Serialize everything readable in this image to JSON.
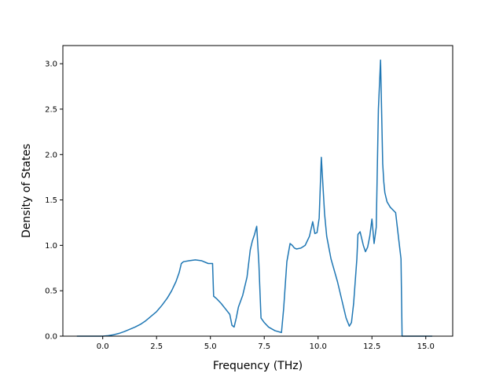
{
  "chart_data": {
    "type": "line",
    "title": "",
    "xlabel": "Frequency (THz)",
    "ylabel": "Density of States",
    "xlim": [
      -1.85,
      16.25
    ],
    "ylim": [
      0.0,
      3.2
    ],
    "grid": false,
    "legend": "none",
    "xticks": [
      0.0,
      2.5,
      5.0,
      7.5,
      10.0,
      12.5,
      15.0
    ],
    "xtick_labels": [
      "0.0",
      "2.5",
      "5.0",
      "7.5",
      "10.0",
      "12.5",
      "15.0"
    ],
    "yticks": [
      0.0,
      0.5,
      1.0,
      1.5,
      2.0,
      2.5,
      3.0
    ],
    "ytick_labels": [
      "0.0",
      "0.5",
      "1.0",
      "1.5",
      "2.0",
      "2.5",
      "3.0"
    ],
    "series": [
      {
        "color": "#1f77b4",
        "x": [
          -1.2,
          -0.5,
          0.0,
          0.25,
          0.5,
          0.75,
          1.0,
          1.25,
          1.5,
          1.75,
          2.0,
          2.25,
          2.5,
          2.75,
          3.0,
          3.2,
          3.4,
          3.55,
          3.65,
          3.75,
          4.0,
          4.3,
          4.6,
          4.9,
          5.1,
          5.15,
          5.3,
          5.5,
          5.7,
          5.9,
          6.0,
          6.1,
          6.2,
          6.3,
          6.5,
          6.7,
          6.85,
          6.95,
          7.05,
          7.15,
          7.25,
          7.35,
          7.5,
          7.7,
          8.0,
          8.3,
          8.4,
          8.55,
          8.7,
          8.8,
          8.9,
          9.0,
          9.2,
          9.4,
          9.6,
          9.75,
          9.85,
          9.95,
          10.05,
          10.15,
          10.3,
          10.4,
          10.6,
          10.9,
          11.1,
          11.3,
          11.45,
          11.55,
          11.65,
          11.8,
          11.85,
          11.95,
          12.1,
          12.2,
          12.3,
          12.4,
          12.5,
          12.6,
          12.7,
          12.8,
          12.9,
          13.0,
          13.05,
          13.1,
          13.2,
          13.35,
          13.6,
          13.85,
          13.9,
          13.95,
          14.5,
          15.3
        ],
        "y": [
          0.0,
          0.0,
          0.0,
          0.005,
          0.015,
          0.03,
          0.05,
          0.075,
          0.1,
          0.13,
          0.17,
          0.22,
          0.27,
          0.34,
          0.42,
          0.5,
          0.6,
          0.7,
          0.8,
          0.82,
          0.83,
          0.84,
          0.83,
          0.8,
          0.8,
          0.44,
          0.41,
          0.36,
          0.3,
          0.24,
          0.12,
          0.1,
          0.2,
          0.32,
          0.45,
          0.65,
          0.95,
          1.05,
          1.12,
          1.21,
          0.8,
          0.2,
          0.15,
          0.1,
          0.06,
          0.04,
          0.3,
          0.82,
          1.02,
          1.0,
          0.97,
          0.96,
          0.97,
          1.0,
          1.1,
          1.26,
          1.13,
          1.14,
          1.3,
          1.97,
          1.35,
          1.1,
          0.85,
          0.6,
          0.4,
          0.2,
          0.11,
          0.15,
          0.36,
          0.85,
          1.12,
          1.15,
          1.0,
          0.93,
          0.98,
          1.1,
          1.29,
          1.02,
          1.2,
          2.5,
          3.04,
          1.9,
          1.7,
          1.58,
          1.48,
          1.42,
          1.36,
          0.85,
          0.0,
          0.0,
          0.0,
          0.0
        ]
      }
    ]
  }
}
